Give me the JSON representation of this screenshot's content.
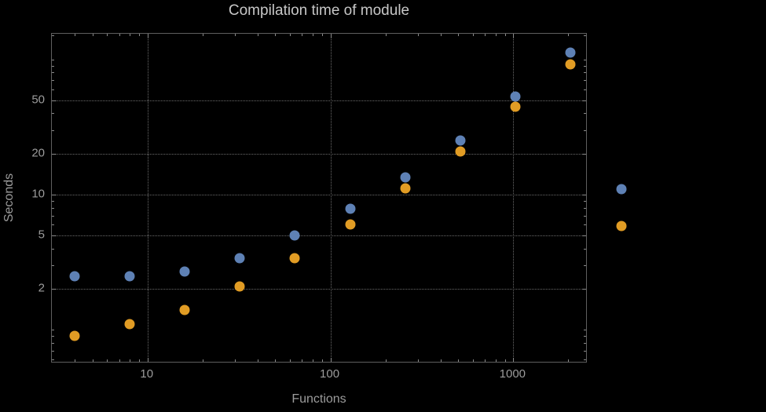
{
  "title": "Compilation time of module",
  "xlabel": "Functions",
  "ylabel": "Seconds",
  "colors": {
    "background": "#000000",
    "frame": "#5f5f5f",
    "grid": "#6b6b6b",
    "title_text": "#c7c7c7",
    "tick_text": "#9c9c9c",
    "series1": "#5e81b5",
    "series2": "#e19c24"
  },
  "chart_data": {
    "type": "scatter",
    "title": "Compilation time of module",
    "xlabel": "Functions",
    "ylabel": "Seconds",
    "x_scale": "log",
    "y_scale": "log",
    "xlim": [
      3,
      2500
    ],
    "ylim": [
      0.58,
      155
    ],
    "grid": true,
    "x_ticks": [
      {
        "value": 10,
        "label": "10"
      },
      {
        "value": 100,
        "label": "100"
      },
      {
        "value": 1000,
        "label": "1000"
      }
    ],
    "y_ticks": [
      {
        "value": 2,
        "label": "2"
      },
      {
        "value": 5,
        "label": "5"
      },
      {
        "value": 10,
        "label": "10"
      },
      {
        "value": 20,
        "label": "20"
      },
      {
        "value": 50,
        "label": "50"
      }
    ],
    "series": [
      {
        "name": "series-1-blue",
        "color": "#5e81b5",
        "x": [
          4,
          8,
          16,
          32,
          64,
          128,
          256,
          512,
          1024,
          2048
        ],
        "y": [
          2.5,
          2.5,
          2.7,
          3.4,
          5.0,
          7.9,
          13.4,
          25,
          53,
          113
        ]
      },
      {
        "name": "series-2-orange",
        "color": "#e19c24",
        "x": [
          4,
          8,
          16,
          32,
          64,
          128,
          256,
          512,
          1024,
          2048
        ],
        "y": [
          0.9,
          1.1,
          1.4,
          2.1,
          3.4,
          6.0,
          11.2,
          21,
          45,
          92
        ]
      }
    ],
    "legend_markers": [
      {
        "name": "legend-marker-blue",
        "color": "#5e81b5"
      },
      {
        "name": "legend-marker-orange",
        "color": "#e19c24"
      }
    ]
  }
}
